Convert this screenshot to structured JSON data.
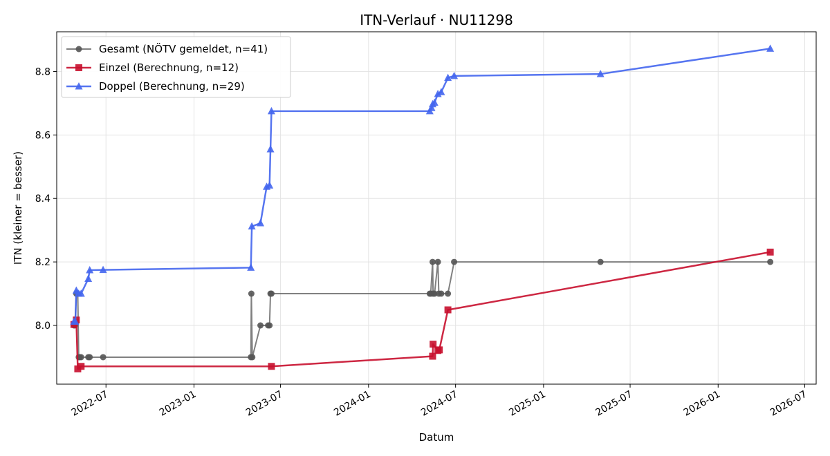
{
  "chart_data": {
    "type": "line",
    "title": "ITN-Verlauf · NU11298",
    "xlabel": "Datum",
    "ylabel": "ITN  (kleiner = besser)",
    "xlim": [
      "2022-03-20",
      "2026-07-25"
    ],
    "ylim": [
      7.815,
      8.925
    ],
    "x_ticks": [
      "2022-07",
      "2023-01",
      "2023-07",
      "2024-01",
      "2024-07",
      "2025-01",
      "2025-07",
      "2026-01",
      "2026-07"
    ],
    "y_ticks": [
      "8.0",
      "8.2",
      "8.4",
      "8.6",
      "8.8"
    ],
    "y_tick_values": [
      8.0,
      8.2,
      8.4,
      8.6,
      8.8
    ],
    "grid": true,
    "legend_position": "top-left",
    "series": [
      {
        "name": "Gesamt (NÖTV gemeldet, n=41)",
        "color": "#555555",
        "marker": "circle",
        "x": [
          "2022-04-25",
          "2022-04-27",
          "2022-04-30",
          "2022-05-03",
          "2022-05-05",
          "2022-05-07",
          "2022-05-10",
          "2022-05-25",
          "2022-05-28",
          "2022-06-25",
          "2023-04-30",
          "2023-05-01",
          "2023-05-03",
          "2023-05-20",
          "2023-06-05",
          "2023-06-08",
          "2023-06-10",
          "2023-06-12",
          "2024-05-08",
          "2024-05-10",
          "2024-05-14",
          "2024-05-15",
          "2024-05-18",
          "2024-05-25",
          "2024-05-27",
          "2024-06-01",
          "2024-06-15",
          "2024-06-28",
          "2025-04-30",
          "2026-04-20"
        ],
        "y": [
          8.0,
          8.0,
          8.1,
          8.1,
          7.9,
          7.9,
          7.9,
          7.9,
          7.9,
          7.9,
          7.9,
          8.1,
          7.9,
          8.0,
          8.0,
          8.0,
          8.1,
          8.1,
          8.1,
          8.1,
          8.2,
          8.1,
          8.1,
          8.2,
          8.1,
          8.1,
          8.1,
          8.2,
          8.2,
          8.2
        ]
      },
      {
        "name": "Einzel (Berechnung, n=12)",
        "color": "#c8102e",
        "marker": "square",
        "x": [
          "2022-04-25",
          "2022-04-30",
          "2022-05-03",
          "2022-05-10",
          "2023-06-12",
          "2024-05-14",
          "2024-05-15",
          "2024-05-25",
          "2024-05-28",
          "2024-06-15",
          "2026-04-20"
        ],
        "y": [
          8.003,
          8.017,
          7.863,
          7.871,
          7.871,
          7.903,
          7.941,
          7.921,
          7.923,
          8.049,
          8.231
        ]
      },
      {
        "name": "Doppel (Berechnung, n=29)",
        "color": "#4466ee",
        "marker": "triangle",
        "x": [
          "2022-04-25",
          "2022-04-28",
          "2022-04-30",
          "2022-05-05",
          "2022-05-10",
          "2022-05-25",
          "2022-05-28",
          "2022-06-25",
          "2023-04-30",
          "2023-05-02",
          "2023-05-20",
          "2023-06-02",
          "2023-06-08",
          "2023-06-10",
          "2023-06-12",
          "2024-05-08",
          "2024-05-12",
          "2024-05-14",
          "2024-05-18",
          "2024-05-25",
          "2024-06-01",
          "2024-06-15",
          "2024-06-28",
          "2025-04-30",
          "2026-04-20"
        ],
        "y": [
          8.012,
          8.012,
          8.11,
          8.1,
          8.1,
          8.147,
          8.174,
          8.175,
          8.182,
          8.312,
          8.322,
          8.437,
          8.441,
          8.555,
          8.675,
          8.675,
          8.685,
          8.697,
          8.702,
          8.729,
          8.735,
          8.78,
          8.786,
          8.792,
          8.872
        ]
      }
    ]
  }
}
